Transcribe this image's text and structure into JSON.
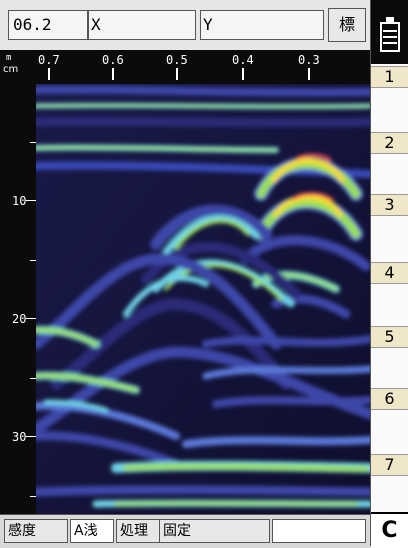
{
  "toolbar": {
    "value_field": "06.2",
    "x_label": "X",
    "x_value": "",
    "y_label": "Y",
    "y_value": "",
    "standard_button": "標"
  },
  "depth_axis": {
    "unit": "cm",
    "labels": [
      "10",
      "20",
      "30"
    ]
  },
  "distance_axis": {
    "unit": "m",
    "labels": [
      "0.7",
      "0.6",
      "0.5",
      "0.4",
      "0.3"
    ]
  },
  "channels": [
    "1",
    "2",
    "3",
    "4",
    "5",
    "6",
    "7"
  ],
  "bottom_bar": {
    "sensitivity": "感度",
    "shallow": "A浅",
    "processing": "処理",
    "fixed": "固定",
    "empty": ""
  },
  "right_button": "C",
  "colors": {
    "background": "#141432",
    "low": "#28286e",
    "mid_blue": "#5a78d8",
    "cyan": "#6ed2e6",
    "green": "#9ade5a",
    "yellow": "#f0dc32",
    "red": "#ff5050"
  },
  "icons": {
    "battery": "battery-icon"
  }
}
